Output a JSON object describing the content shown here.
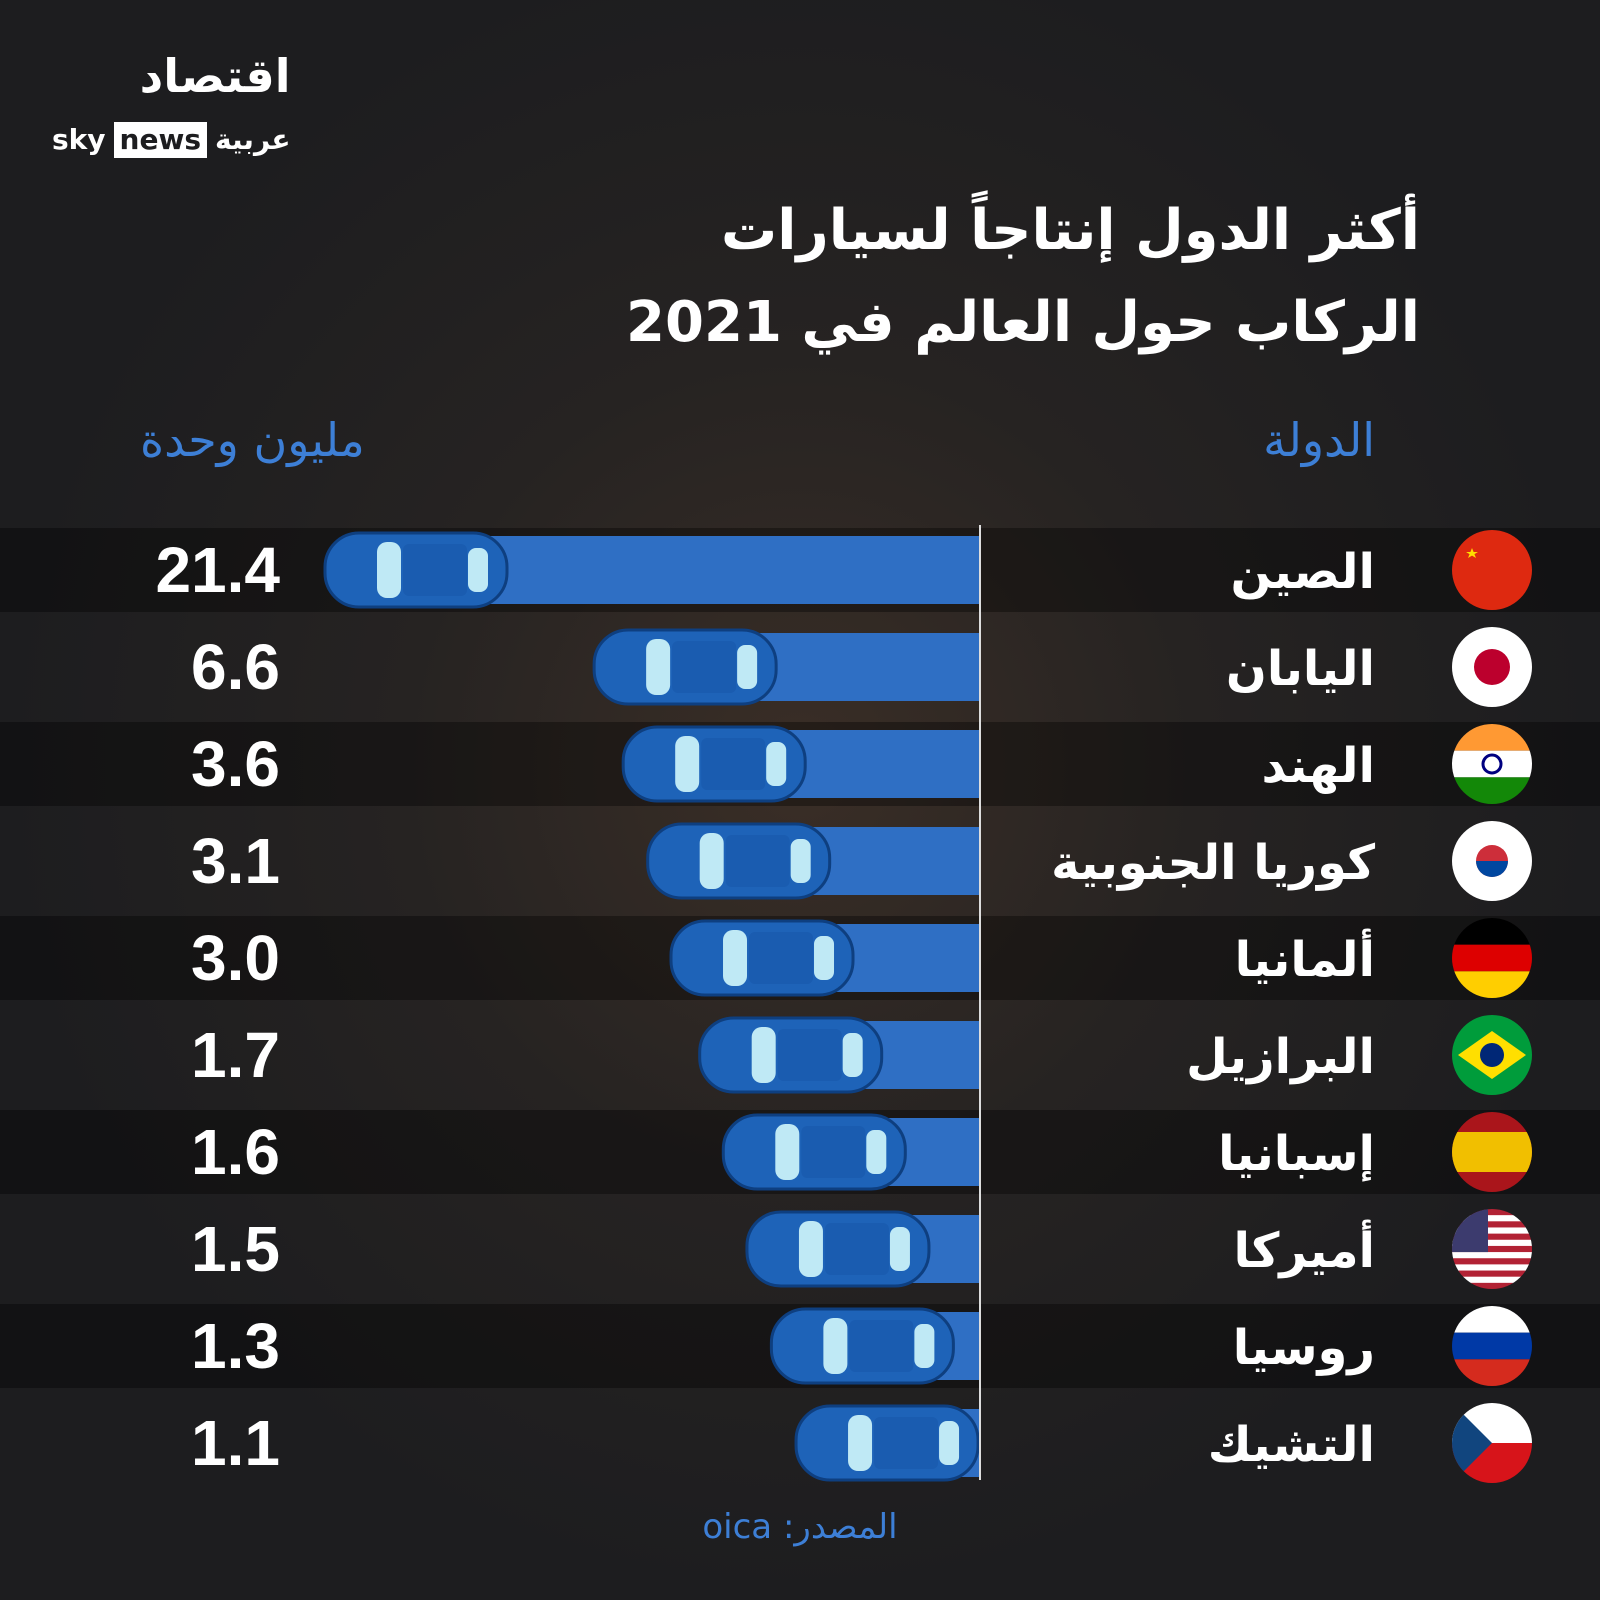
{
  "logo": {
    "arabic": "اقتصاد",
    "sky": "sky",
    "news": "news",
    "arabiya": "عربية"
  },
  "title": {
    "line1": "أكثر الدول إنتاجاً لسيارات",
    "line2": "الركاب حول العالم في 2021"
  },
  "headers": {
    "country": "الدولة",
    "unit": "مليون وحدة"
  },
  "source": "المصدر: oica",
  "colors": {
    "bar": "#2f6fc4",
    "car": "#1e63b8",
    "header": "#3d7fd6"
  },
  "chart_data": {
    "type": "bar",
    "orientation": "horizontal",
    "categories": [
      "الصين",
      "اليابان",
      "الهند",
      "كوريا الجنوبية",
      "ألمانيا",
      "البرازيل",
      "إسبانيا",
      "أميركا",
      "روسيا",
      "التشيك"
    ],
    "flags": [
      "china",
      "japan",
      "india",
      "south-korea",
      "germany",
      "brazil",
      "spain",
      "usa",
      "russia",
      "czechia"
    ],
    "values": [
      21.4,
      6.6,
      3.6,
      3.1,
      3.0,
      1.7,
      1.6,
      1.5,
      1.3,
      1.1
    ],
    "value_labels": [
      "21.4",
      "6.6",
      "3.6",
      "3.1",
      "3.0",
      "1.7",
      "1.6",
      "1.5",
      "1.3",
      "1.1"
    ],
    "xlabel": "مليون وحدة",
    "ylabel": "الدولة"
  }
}
